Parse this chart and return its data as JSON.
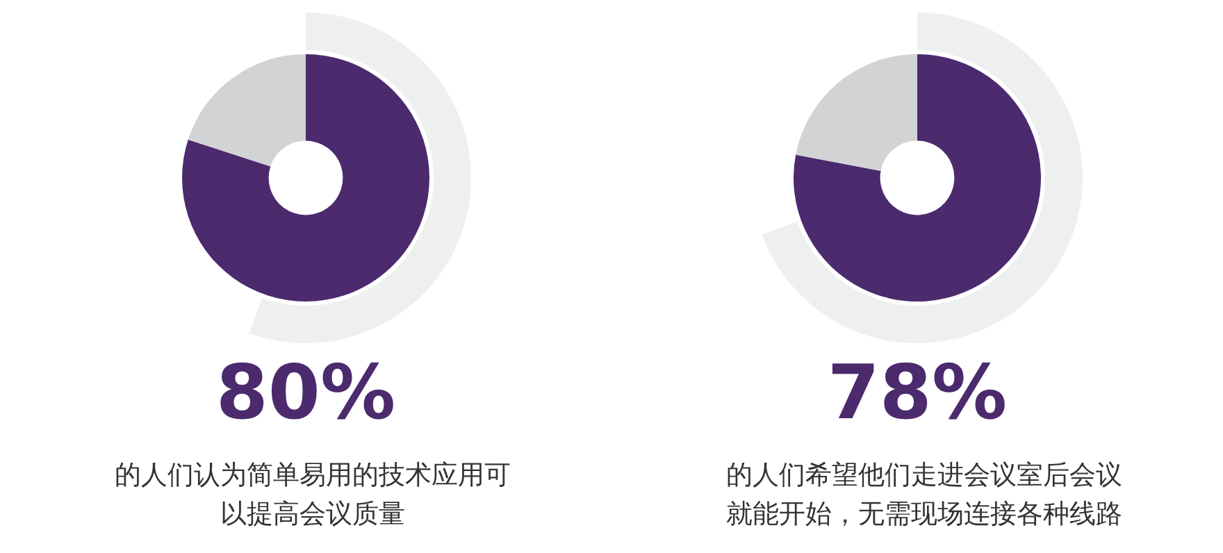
{
  "chart_data": [
    {
      "type": "donut",
      "title": "80%",
      "subtitle": "的人们认为简单易用的技术应用可以提高会议质量",
      "categories": [
        null,
        null
      ],
      "values": [
        80,
        20
      ],
      "colors": [
        "#4b2a6e",
        "#d1d3d4"
      ]
    },
    {
      "type": "donut",
      "title": "78%",
      "subtitle": "的人们希望他们走进会议室后会议就能开始，无需现场连接各种线路",
      "categories": [
        null,
        null
      ],
      "values": [
        78,
        22
      ],
      "colors": [
        "#4b2a6e",
        "#d1d3d4"
      ]
    }
  ]
}
